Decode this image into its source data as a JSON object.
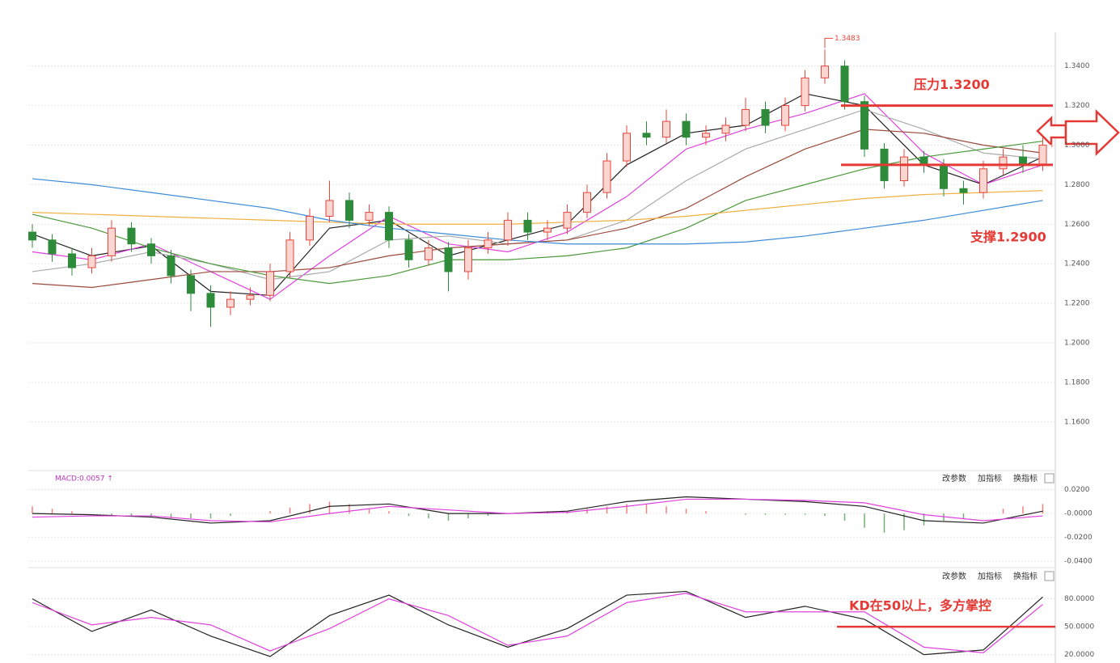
{
  "chart_data": [
    {
      "type": "candlestick",
      "up_color": "#e8453c",
      "down_color": "#2e8b3a",
      "ohlc": [
        [
          1.256,
          1.26,
          1.248,
          1.252
        ],
        [
          1.252,
          1.255,
          1.241,
          1.245
        ],
        [
          1.245,
          1.248,
          1.234,
          1.238
        ],
        [
          1.238,
          1.248,
          1.235,
          1.244
        ],
        [
          1.244,
          1.262,
          1.241,
          1.258
        ],
        [
          1.258,
          1.261,
          1.246,
          1.25
        ],
        [
          1.25,
          1.253,
          1.24,
          1.244
        ],
        [
          1.244,
          1.247,
          1.23,
          1.234
        ],
        [
          1.234,
          1.237,
          1.216,
          1.225
        ],
        [
          1.225,
          1.229,
          1.208,
          1.218
        ],
        [
          1.218,
          1.226,
          1.214,
          1.222
        ],
        [
          1.222,
          1.228,
          1.219,
          1.224
        ],
        [
          1.224,
          1.24,
          1.221,
          1.236
        ],
        [
          1.236,
          1.256,
          1.233,
          1.252
        ],
        [
          1.252,
          1.268,
          1.249,
          1.264
        ],
        [
          1.264,
          1.282,
          1.261,
          1.272
        ],
        [
          1.272,
          1.276,
          1.258,
          1.262
        ],
        [
          1.262,
          1.27,
          1.259,
          1.266
        ],
        [
          1.266,
          1.269,
          1.248,
          1.252
        ],
        [
          1.252,
          1.255,
          1.238,
          1.242
        ],
        [
          1.242,
          1.252,
          1.239,
          1.248
        ],
        [
          1.248,
          1.251,
          1.226,
          1.236
        ],
        [
          1.236,
          1.252,
          1.232,
          1.248
        ],
        [
          1.248,
          1.256,
          1.245,
          1.252
        ],
        [
          1.252,
          1.266,
          1.249,
          1.262
        ],
        [
          1.262,
          1.266,
          1.252,
          1.256
        ],
        [
          1.256,
          1.262,
          1.252,
          1.258
        ],
        [
          1.258,
          1.27,
          1.255,
          1.266
        ],
        [
          1.266,
          1.28,
          1.263,
          1.276
        ],
        [
          1.276,
          1.296,
          1.273,
          1.292
        ],
        [
          1.292,
          1.31,
          1.289,
          1.306
        ],
        [
          1.306,
          1.312,
          1.3,
          1.304
        ],
        [
          1.304,
          1.318,
          1.301,
          1.312
        ],
        [
          1.312,
          1.316,
          1.3,
          1.304
        ],
        [
          1.304,
          1.31,
          1.3,
          1.306
        ],
        [
          1.306,
          1.314,
          1.302,
          1.31
        ],
        [
          1.31,
          1.324,
          1.307,
          1.318
        ],
        [
          1.318,
          1.322,
          1.306,
          1.31
        ],
        [
          1.31,
          1.324,
          1.307,
          1.32
        ],
        [
          1.32,
          1.338,
          1.317,
          1.334
        ],
        [
          1.334,
          1.3483,
          1.331,
          1.34
        ],
        [
          1.34,
          1.343,
          1.318,
          1.322
        ],
        [
          1.322,
          1.325,
          1.294,
          1.298
        ],
        [
          1.298,
          1.301,
          1.278,
          1.282
        ],
        [
          1.282,
          1.298,
          1.279,
          1.294
        ],
        [
          1.294,
          1.297,
          1.286,
          1.29
        ],
        [
          1.29,
          1.293,
          1.274,
          1.278
        ],
        [
          1.278,
          1.282,
          1.27,
          1.276
        ],
        [
          1.276,
          1.292,
          1.273,
          1.288
        ],
        [
          1.288,
          1.298,
          1.285,
          1.294
        ],
        [
          1.294,
          1.3,
          1.286,
          1.29
        ],
        [
          1.29,
          1.304,
          1.287,
          1.3
        ]
      ],
      "x": [
        0,
        3,
        6,
        9,
        12,
        15,
        18,
        21,
        24,
        27,
        30,
        33,
        36,
        39,
        42,
        45,
        48,
        51
      ],
      "series": [
        {
          "color": "#222222",
          "values": [
            1.255,
            1.244,
            1.249,
            1.226,
            1.224,
            1.258,
            1.262,
            1.244,
            1.252,
            1.26,
            1.29,
            1.306,
            1.31,
            1.326,
            1.32,
            1.29,
            1.28,
            1.294
          ]
        },
        {
          "color": "#e040e0",
          "values": [
            1.246,
            1.242,
            1.25,
            1.236,
            1.222,
            1.244,
            1.264,
            1.25,
            1.246,
            1.256,
            1.274,
            1.298,
            1.308,
            1.316,
            1.326,
            1.296,
            1.28,
            1.29
          ]
        },
        {
          "color": "#aaaaaa",
          "values": [
            1.236,
            1.24,
            1.246,
            1.24,
            1.232,
            1.236,
            1.252,
            1.254,
            1.25,
            1.252,
            1.262,
            1.282,
            1.298,
            1.308,
            1.318,
            1.308,
            1.296,
            1.293
          ]
        },
        {
          "color": "#9a4a3a",
          "values": [
            1.23,
            1.228,
            1.232,
            1.236,
            1.236,
            1.238,
            1.244,
            1.248,
            1.25,
            1.252,
            1.258,
            1.268,
            1.284,
            1.298,
            1.308,
            1.306,
            1.3,
            1.296
          ]
        },
        {
          "color": "#4a9a3a",
          "values": [
            1.265,
            1.258,
            1.248,
            1.24,
            1.234,
            1.23,
            1.234,
            1.242,
            1.242,
            1.244,
            1.248,
            1.258,
            1.272,
            1.28,
            1.288,
            1.294,
            1.298,
            1.302
          ]
        },
        {
          "color": "#f0b040",
          "values": [
            1.266,
            1.265,
            1.264,
            1.263,
            1.262,
            1.261,
            1.26,
            1.26,
            1.26,
            1.261,
            1.262,
            1.264,
            1.267,
            1.27,
            1.273,
            1.275,
            1.276,
            1.277
          ]
        },
        {
          "color": "#3a8ad8",
          "values": [
            1.283,
            1.28,
            1.276,
            1.272,
            1.268,
            1.262,
            1.258,
            1.255,
            1.252,
            1.25,
            1.25,
            1.25,
            1.251,
            1.254,
            1.258,
            1.262,
            1.267,
            1.272
          ]
        }
      ],
      "ylim": [
        1.137,
        1.355
      ],
      "yticks": [
        {
          "value": 1.34,
          "label": "1.3400"
        },
        {
          "value": 1.32,
          "label": "1.3200"
        },
        {
          "value": 1.3,
          "label": "1.3000"
        },
        {
          "value": 1.28,
          "label": "1.2800"
        },
        {
          "value": 1.26,
          "label": "1.2600"
        },
        {
          "value": 1.24,
          "label": "1.2400"
        },
        {
          "value": 1.22,
          "label": "1.2200"
        },
        {
          "value": 1.2,
          "label": "1.2000"
        },
        {
          "value": 1.18,
          "label": "1.1800"
        },
        {
          "value": 1.16,
          "label": "1.1600"
        }
      ],
      "peak_label": {
        "text": "1.3483",
        "value": 1.3483
      },
      "annotations": [
        {
          "text": "压力1.3200",
          "value": 1.32,
          "color": "#e53935"
        },
        {
          "text": "支撑1.2900",
          "value": 1.29,
          "color": "#e53935"
        }
      ]
    },
    {
      "type": "macd",
      "header": "MACD:0.0057 ↑",
      "buttons": [
        "改参数",
        "加指标",
        "换指标"
      ],
      "x": [
        0,
        3,
        6,
        9,
        12,
        15,
        18,
        21,
        24,
        27,
        30,
        33,
        36,
        39,
        42,
        45,
        48,
        51
      ],
      "series": [
        {
          "color": "#222222",
          "values": [
            0.0,
            -0.001,
            -0.003,
            -0.008,
            -0.006,
            0.006,
            0.008,
            0.0,
            0.0,
            0.002,
            0.01,
            0.014,
            0.012,
            0.01,
            0.006,
            -0.006,
            -0.008,
            0.002
          ]
        },
        {
          "color": "#e040e0",
          "values": [
            -0.003,
            -0.002,
            -0.002,
            -0.006,
            -0.007,
            0.0,
            0.006,
            0.003,
            0.0,
            0.001,
            0.006,
            0.012,
            0.012,
            0.011,
            0.009,
            -0.001,
            -0.006,
            -0.002
          ]
        }
      ],
      "histogram": [
        0.006,
        0.004,
        0.002,
        0.0,
        -0.002,
        -0.002,
        -0.003,
        -0.004,
        -0.004,
        -0.004,
        -0.002,
        0.0,
        0.002,
        0.005,
        0.008,
        0.01,
        0.008,
        0.004,
        0.002,
        -0.002,
        -0.004,
        -0.006,
        -0.004,
        -0.002,
        0.0,
        0.001,
        0.002,
        0.002,
        0.004,
        0.006,
        0.008,
        0.008,
        0.006,
        0.004,
        0.002,
        0.0,
        -0.001,
        -0.001,
        -0.001,
        -0.001,
        -0.002,
        -0.006,
        -0.012,
        -0.016,
        -0.014,
        -0.01,
        -0.006,
        -0.004,
        0.0,
        0.004,
        0.006,
        0.008
      ],
      "up_color": "#f08080",
      "down_color": "#70b070",
      "ylim": [
        -0.044,
        0.034
      ],
      "yticks": [
        {
          "value": 0.02,
          "label": "0.0200"
        },
        {
          "value": 0,
          "label": "-0.0000"
        },
        {
          "value": -0.02,
          "label": "-0.0200"
        },
        {
          "value": -0.04,
          "label": "-0.0400"
        }
      ]
    },
    {
      "type": "kd",
      "buttons": [
        "改参数",
        "加指标",
        "换指标"
      ],
      "x": [
        0,
        3,
        6,
        9,
        12,
        15,
        18,
        21,
        24,
        27,
        30,
        33,
        36,
        39,
        42,
        45,
        48,
        51
      ],
      "series": [
        {
          "color": "#222222",
          "values": [
            80,
            45,
            68,
            40,
            18,
            62,
            84,
            52,
            28,
            48,
            84,
            88,
            60,
            72,
            58,
            20,
            25,
            82
          ]
        },
        {
          "color": "#e040e0",
          "values": [
            76,
            52,
            60,
            52,
            24,
            48,
            80,
            62,
            30,
            40,
            76,
            86,
            66,
            66,
            66,
            28,
            22,
            74
          ]
        }
      ],
      "ylim": [
        11,
        111
      ],
      "yticks": [
        {
          "value": 80,
          "label": "80.0000"
        },
        {
          "value": 50,
          "label": "50.0000"
        },
        {
          "value": 20,
          "label": "20.0000"
        }
      ],
      "annotations": [
        {
          "text": "KD在50以上，多方掌控",
          "value": 50,
          "color": "#e53935"
        }
      ]
    }
  ]
}
